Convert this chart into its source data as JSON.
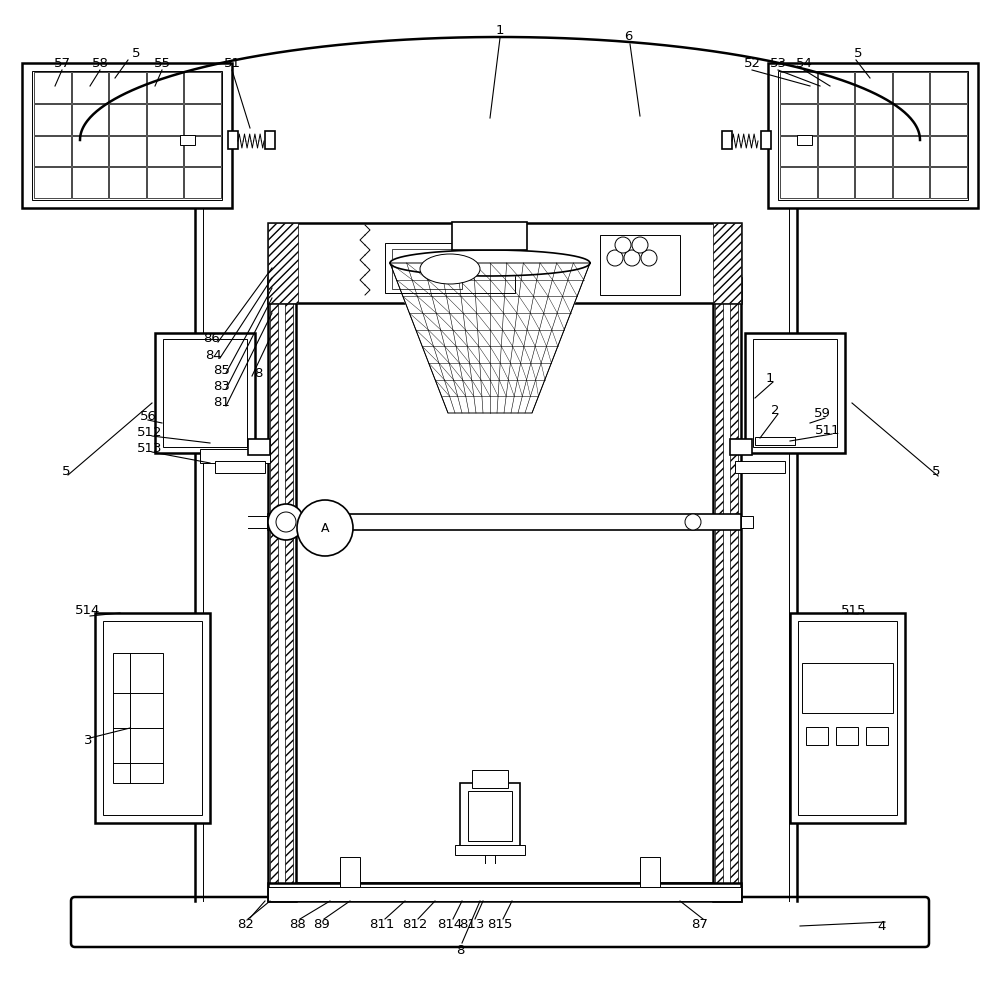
{
  "bg_color": "#ffffff",
  "line_color": "#000000",
  "fig_width": 10.0,
  "fig_height": 9.98
}
